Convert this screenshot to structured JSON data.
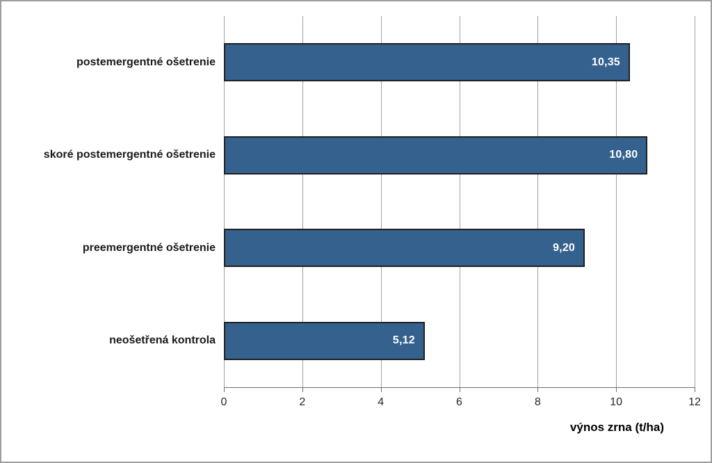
{
  "chart_data": {
    "type": "bar",
    "orientation": "horizontal",
    "title": "",
    "xlabel": "výnos zrna (t/ha)",
    "categories": [
      "postemergentné ošetrenie",
      "skoré postemergentné ošetrenie",
      "preemergentné ošetrenie",
      "neošetřená kontrola"
    ],
    "values": [
      10.35,
      10.8,
      9.2,
      5.12
    ],
    "value_labels": [
      "10,35",
      "10,80",
      "9,20",
      "5,12"
    ],
    "xlim": [
      0,
      12
    ],
    "xticks": [
      0,
      2,
      4,
      6,
      8,
      10,
      12
    ],
    "xtick_labels": [
      "0",
      "2",
      "4",
      "6",
      "8",
      "10",
      "12"
    ],
    "grid": true,
    "legend": false,
    "colors": {
      "bar_fill": "#35618E",
      "bar_border": "#1F1F1F",
      "value_label": "#FFFFFF",
      "gridline": "#A0A0A0",
      "axis_line": "#6E6E6E",
      "tick_mark": "#6E6E6E",
      "tick_label": "#262626",
      "category_label": "#1A1A1A",
      "axis_title": "#000000",
      "frame_border": "#9D9D9D",
      "background": "#FFFFFF"
    }
  }
}
